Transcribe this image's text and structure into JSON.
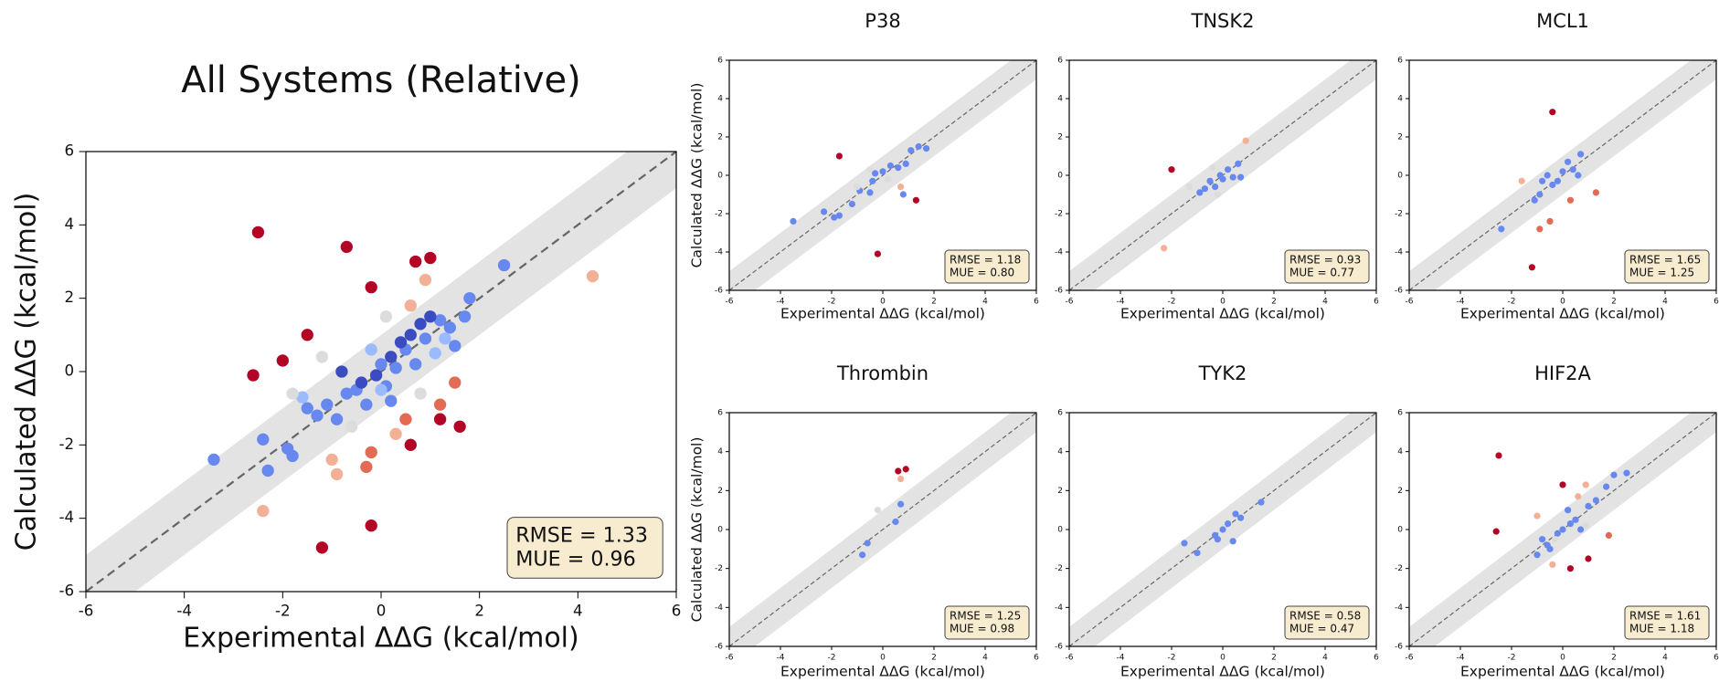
{
  "chart_data": [
    {
      "type": "scatter",
      "title": "All Systems (Relative)",
      "x_label": "Experimental ΔΔG (kcal/mol)",
      "y_label": "Calculated ΔΔG (kcal/mol)",
      "xlim": [
        -6,
        6
      ],
      "ylim": [
        -6,
        6
      ],
      "xticks": [
        -6,
        -4,
        -2,
        0,
        2,
        4,
        6
      ],
      "yticks": [
        -6,
        -4,
        -2,
        0,
        2,
        4,
        6
      ],
      "band": 1,
      "identity_line": true,
      "annotations": [
        "RMSE = 1.33",
        "MUE = 0.96"
      ],
      "series": [
        {
          "color": "#6788ee",
          "x": [
            -3.4,
            -2.4,
            -2.3,
            -1.9,
            -1.8,
            -1.3,
            -1.1,
            -0.9,
            -0.7,
            -0.5,
            -0.3,
            0.0,
            0.1,
            0.3,
            0.5,
            0.7,
            0.9,
            1.2,
            1.4,
            1.5,
            1.7,
            1.8,
            2.5,
            -1.5,
            0.2
          ],
          "values": [
            -2.4,
            -1.85,
            -2.7,
            -2.1,
            -2.3,
            -1.2,
            -0.9,
            -1.3,
            -0.6,
            -0.5,
            -0.9,
            0.2,
            -0.4,
            0.1,
            0.6,
            0.2,
            0.9,
            1.4,
            1.2,
            0.7,
            1.5,
            2.0,
            2.9,
            -1.0,
            -0.8
          ]
        },
        {
          "color": "#3b4cc0",
          "x": [
            -0.4,
            -0.1,
            0.2,
            0.4,
            0.6,
            0.8,
            1.0,
            -0.8
          ],
          "values": [
            -0.3,
            -0.1,
            0.4,
            0.8,
            1.0,
            1.3,
            1.5,
            0.0
          ]
        },
        {
          "color": "#9abbff",
          "x": [
            1.1,
            -0.2,
            -1.6,
            0.0,
            1.3
          ],
          "values": [
            0.5,
            0.6,
            -0.7,
            -0.5,
            0.9
          ]
        },
        {
          "color": "#dddcdc",
          "x": [
            -1.8,
            -1.2,
            0.1,
            -0.6,
            0.8
          ],
          "values": [
            -0.6,
            0.4,
            1.5,
            -1.5,
            -0.6
          ]
        },
        {
          "color": "#f2b196",
          "x": [
            -2.4,
            -1.0,
            0.6,
            0.9,
            4.3,
            -0.9,
            0.3
          ],
          "values": [
            -3.8,
            -2.4,
            1.8,
            2.5,
            2.6,
            -2.8,
            -1.7
          ]
        },
        {
          "color": "#e36a53",
          "x": [
            -0.3,
            1.2,
            1.5,
            0.5,
            -0.2
          ],
          "values": [
            -2.6,
            -0.9,
            -0.3,
            -1.3,
            -2.2
          ]
        },
        {
          "color": "#b40426",
          "x": [
            -2.5,
            -2.6,
            -2.0,
            -1.5,
            -0.7,
            -0.2,
            0.7,
            1.0,
            -1.2,
            -0.2,
            0.6,
            1.2,
            1.6
          ],
          "values": [
            3.8,
            -0.1,
            0.3,
            1.0,
            3.4,
            2.3,
            3.0,
            3.1,
            -4.8,
            -4.2,
            -2.0,
            -1.3,
            -1.5
          ]
        }
      ]
    },
    {
      "type": "scatter",
      "title": "P38",
      "x_label": "Experimental ΔΔG (kcal/mol)",
      "y_label": "Calculated ΔΔG (kcal/mol)",
      "xlim": [
        -6,
        6
      ],
      "ylim": [
        -6,
        6
      ],
      "xticks": [
        -6,
        -4,
        -2,
        0,
        2,
        4,
        6
      ],
      "yticks": [
        -6,
        -4,
        -2,
        0,
        2,
        4,
        6
      ],
      "band": 1,
      "identity_line": true,
      "annotations": [
        "RMSE = 1.18",
        "MUE = 0.80"
      ],
      "series": [
        {
          "color": "#6788ee",
          "x": [
            -3.5,
            -2.3,
            -1.9,
            -1.7,
            -1.2,
            -0.9,
            -0.4,
            -0.3,
            0.0,
            0.3,
            0.6,
            0.9,
            1.1,
            1.4,
            1.7,
            -0.5,
            0.8
          ],
          "values": [
            -2.4,
            -1.9,
            -2.2,
            -2.1,
            -1.5,
            -0.8,
            -0.3,
            0.1,
            0.2,
            0.5,
            0.4,
            0.6,
            1.3,
            1.5,
            1.4,
            -0.9,
            -1.0
          ]
        },
        {
          "color": "#dddcdc",
          "x": [
            -0.5,
            0.2,
            -1.0
          ],
          "values": [
            0.3,
            -0.2,
            -0.6
          ]
        },
        {
          "color": "#f2b196",
          "x": [
            0.7
          ],
          "values": [
            -0.6
          ]
        },
        {
          "color": "#b40426",
          "x": [
            -1.7,
            -0.2,
            1.3
          ],
          "values": [
            1.0,
            -4.1,
            -1.3
          ]
        }
      ]
    },
    {
      "type": "scatter",
      "title": "TNSK2",
      "x_label": "Experimental ΔΔG (kcal/mol)",
      "xlim": [
        -6,
        6
      ],
      "ylim": [
        -6,
        6
      ],
      "xticks": [
        -6,
        -4,
        -2,
        0,
        2,
        4,
        6
      ],
      "yticks": [
        -6,
        -4,
        -2,
        0,
        2,
        4,
        6
      ],
      "band": 1,
      "identity_line": true,
      "annotations": [
        "RMSE = 0.93",
        "MUE = 0.77"
      ],
      "series": [
        {
          "color": "#6788ee",
          "x": [
            -0.9,
            -0.5,
            -0.3,
            0.0,
            0.2,
            0.4,
            0.6,
            0.7,
            -0.7,
            -0.1
          ],
          "values": [
            -0.9,
            -0.3,
            -0.6,
            -0.2,
            0.3,
            -0.1,
            0.6,
            -0.1,
            -0.7,
            0.0
          ]
        },
        {
          "color": "#dddcdc",
          "x": [
            -1.3,
            -0.4,
            -0.2
          ],
          "values": [
            -0.6,
            0.4,
            -1.0
          ]
        },
        {
          "color": "#f2b196",
          "x": [
            -2.3,
            0.9
          ],
          "values": [
            -3.8,
            1.8
          ]
        },
        {
          "color": "#b40426",
          "x": [
            -2.0
          ],
          "values": [
            0.3
          ]
        }
      ]
    },
    {
      "type": "scatter",
      "title": "MCL1",
      "x_label": "Experimental ΔΔG (kcal/mol)",
      "xlim": [
        -6,
        6
      ],
      "ylim": [
        -6,
        6
      ],
      "xticks": [
        -6,
        -4,
        -2,
        0,
        2,
        4,
        6
      ],
      "yticks": [
        -6,
        -4,
        -2,
        0,
        2,
        4,
        6
      ],
      "band": 1,
      "identity_line": true,
      "annotations": [
        "RMSE = 1.65",
        "MUE = 1.25"
      ],
      "series": [
        {
          "color": "#6788ee",
          "x": [
            -2.4,
            -1.1,
            -0.8,
            -0.6,
            -0.4,
            -0.2,
            0.0,
            0.2,
            0.4,
            0.7,
            0.6,
            -0.9
          ],
          "values": [
            -2.8,
            -1.3,
            -0.3,
            0.0,
            -0.5,
            -0.3,
            0.2,
            0.7,
            0.3,
            1.1,
            0.0,
            -1.0
          ]
        },
        {
          "color": "#f2b196",
          "x": [
            -1.6
          ],
          "values": [
            -0.3
          ]
        },
        {
          "color": "#e36a53",
          "x": [
            -0.5,
            -0.9,
            0.3,
            1.3
          ],
          "values": [
            -2.4,
            -2.8,
            -1.3,
            -0.9
          ]
        },
        {
          "color": "#b40426",
          "x": [
            -0.4,
            -1.2
          ],
          "values": [
            3.3,
            -4.8
          ]
        }
      ]
    },
    {
      "type": "scatter",
      "title": "Thrombin",
      "x_label": "Experimental ΔΔG (kcal/mol)",
      "y_label": "Calculated ΔΔG (kcal/mol)",
      "xlim": [
        -6,
        6
      ],
      "ylim": [
        -6,
        6
      ],
      "xticks": [
        -6,
        -4,
        -2,
        0,
        2,
        4,
        6
      ],
      "yticks": [
        -6,
        -4,
        -2,
        0,
        2,
        4,
        6
      ],
      "band": 1,
      "identity_line": true,
      "annotations": [
        "RMSE = 1.25",
        "MUE = 0.98"
      ],
      "series": [
        {
          "color": "#6788ee",
          "x": [
            -0.6,
            -0.8,
            0.5,
            0.7
          ],
          "values": [
            -0.7,
            -1.3,
            0.4,
            1.3
          ]
        },
        {
          "color": "#dddcdc",
          "x": [
            -0.2
          ],
          "values": [
            1.0
          ]
        },
        {
          "color": "#f2b196",
          "x": [
            0.7
          ],
          "values": [
            2.6
          ]
        },
        {
          "color": "#b40426",
          "x": [
            0.6,
            0.9
          ],
          "values": [
            3.0,
            3.1
          ]
        }
      ]
    },
    {
      "type": "scatter",
      "title": "TYK2",
      "x_label": "Experimental ΔΔG (kcal/mol)",
      "xlim": [
        -6,
        6
      ],
      "ylim": [
        -6,
        6
      ],
      "xticks": [
        -6,
        -4,
        -2,
        0,
        2,
        4,
        6
      ],
      "yticks": [
        -6,
        -4,
        -2,
        0,
        2,
        4,
        6
      ],
      "band": 1,
      "identity_line": true,
      "annotations": [
        "RMSE = 0.58",
        "MUE = 0.47"
      ],
      "series": [
        {
          "color": "#6788ee",
          "x": [
            -1.5,
            -1.0,
            -0.3,
            0.0,
            0.2,
            0.5,
            0.7,
            1.5,
            -0.2,
            0.4
          ],
          "values": [
            -0.7,
            -1.2,
            -0.3,
            0.0,
            0.3,
            0.8,
            0.6,
            1.4,
            -0.5,
            -0.6
          ]
        }
      ]
    },
    {
      "type": "scatter",
      "title": "HIF2A",
      "x_label": "Experimental ΔΔG (kcal/mol)",
      "xlim": [
        -6,
        6
      ],
      "ylim": [
        -6,
        6
      ],
      "xticks": [
        -6,
        -4,
        -2,
        0,
        2,
        4,
        6
      ],
      "yticks": [
        -6,
        -4,
        -2,
        0,
        2,
        4,
        6
      ],
      "band": 1,
      "identity_line": true,
      "annotations": [
        "RMSE = 1.61",
        "MUE = 1.18"
      ],
      "series": [
        {
          "color": "#6788ee",
          "x": [
            -1.0,
            -0.8,
            -0.5,
            -0.2,
            0.0,
            0.2,
            0.5,
            0.7,
            1.0,
            1.3,
            1.7,
            2.0,
            2.5,
            -0.6,
            0.3
          ],
          "values": [
            -1.3,
            -0.5,
            -1.0,
            -0.2,
            0.0,
            1.0,
            0.5,
            0.0,
            1.2,
            1.5,
            2.2,
            2.8,
            2.9,
            -0.8,
            0.3
          ]
        },
        {
          "color": "#dddcdc",
          "x": [
            -0.3,
            0.9
          ],
          "values": [
            -0.5,
            0.2
          ]
        },
        {
          "color": "#f2b196",
          "x": [
            -1.0,
            0.6,
            -0.4,
            0.9
          ],
          "values": [
            0.7,
            1.7,
            -1.8,
            2.3
          ]
        },
        {
          "color": "#e36a53",
          "x": [
            1.8
          ],
          "values": [
            -0.3
          ]
        },
        {
          "color": "#b40426",
          "x": [
            -2.5,
            -2.6,
            0.0,
            0.3,
            1.0
          ],
          "values": [
            3.8,
            -0.1,
            2.3,
            -2.0,
            -1.5
          ]
        }
      ]
    }
  ]
}
